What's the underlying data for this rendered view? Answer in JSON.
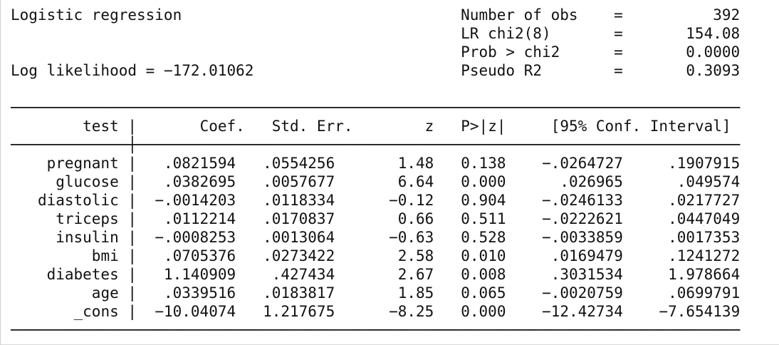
{
  "header": {
    "title": "Logistic regression",
    "log_likelihood_label": "Log likelihood",
    "log_likelihood_value": "-172.01062",
    "stats": [
      {
        "label": "Number of obs",
        "value": "392"
      },
      {
        "label": "LR chi2(8)",
        "value": "154.08"
      },
      {
        "label": "Prob > chi2",
        "value": "0.0000"
      },
      {
        "label": "Pseudo R2",
        "value": "0.3093"
      }
    ]
  },
  "table": {
    "depvar": "test",
    "columns": [
      "Coef.",
      "Std. Err.",
      "z",
      "P>|z|",
      "[95% Conf. Interval]"
    ],
    "rows": [
      {
        "var": "pregnant",
        "coef": ".0821594",
        "se": ".0554256",
        "z": "1.48",
        "p": "0.138",
        "lo": "-.0264727",
        "hi": ".1907915"
      },
      {
        "var": "glucose",
        "coef": ".0382695",
        "se": ".0057677",
        "z": "6.64",
        "p": "0.000",
        "lo": ".026965",
        "hi": ".049574"
      },
      {
        "var": "diastolic",
        "coef": "-.0014203",
        "se": ".0118334",
        "z": "-0.12",
        "p": "0.904",
        "lo": "-.0246133",
        "hi": ".0217727"
      },
      {
        "var": "triceps",
        "coef": ".0112214",
        "se": ".0170837",
        "z": "0.66",
        "p": "0.511",
        "lo": "-.0222621",
        "hi": ".0447049"
      },
      {
        "var": "insulin",
        "coef": "-.0008253",
        "se": ".0013064",
        "z": "-0.63",
        "p": "0.528",
        "lo": "-.0033859",
        "hi": ".0017353"
      },
      {
        "var": "bmi",
        "coef": ".0705376",
        "se": ".0273422",
        "z": "2.58",
        "p": "0.010",
        "lo": ".0169479",
        "hi": ".1241272"
      },
      {
        "var": "diabetes",
        "coef": "1.140909",
        "se": ".427434",
        "z": "2.67",
        "p": "0.008",
        "lo": ".3031534",
        "hi": "1.978664"
      },
      {
        "var": "age",
        "coef": ".0339516",
        "se": ".0183817",
        "z": "1.85",
        "p": "0.065",
        "lo": "-.0020759",
        "hi": ".0699791"
      },
      {
        "var": "_cons",
        "coef": "-10.04074",
        "se": "1.217675",
        "z": "-8.25",
        "p": "0.000",
        "lo": "-12.42734",
        "hi": "-7.654139"
      }
    ]
  }
}
